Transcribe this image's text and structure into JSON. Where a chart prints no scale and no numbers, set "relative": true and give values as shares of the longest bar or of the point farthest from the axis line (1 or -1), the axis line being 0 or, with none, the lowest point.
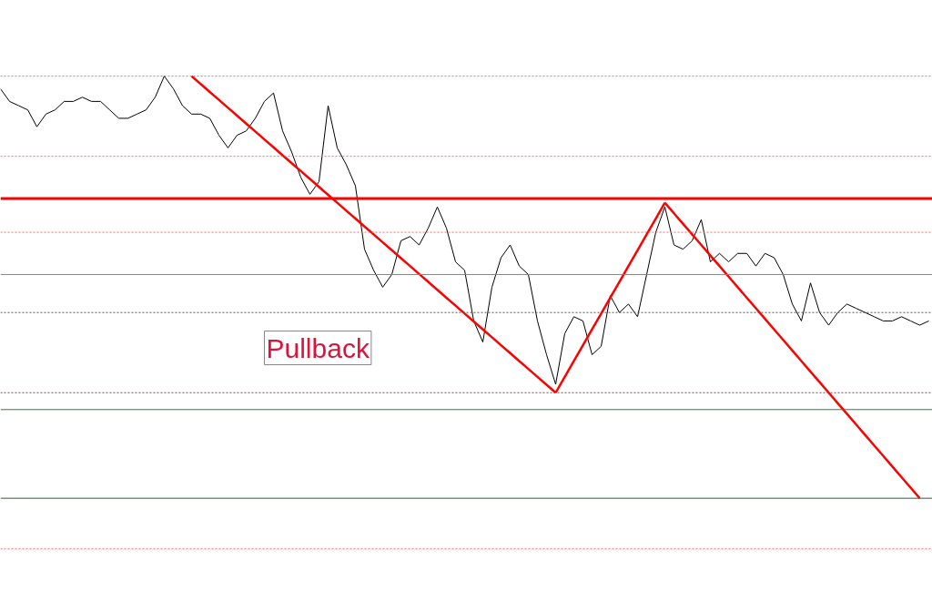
{
  "chart_data": {
    "type": "line",
    "relative": true,
    "grid": false,
    "marker": "none",
    "categories": [
      null,
      null,
      null,
      null,
      null,
      null,
      null,
      null,
      null,
      null,
      null,
      null,
      null,
      null,
      null,
      null,
      null,
      null,
      null,
      null,
      null,
      null,
      null,
      null,
      null,
      null,
      null,
      null,
      null,
      null,
      null,
      null,
      null,
      null,
      null,
      null,
      null,
      null,
      null,
      null,
      null,
      null,
      null,
      null,
      null,
      null,
      null,
      null,
      null,
      null,
      null,
      null,
      null,
      null,
      null,
      null,
      null,
      null,
      null,
      null,
      null,
      null,
      null,
      null,
      null,
      null,
      null,
      null,
      null,
      null,
      null,
      null,
      null,
      null,
      null,
      null,
      null,
      null,
      null,
      null,
      null,
      null,
      null,
      null,
      null,
      null,
      null,
      null,
      null,
      null,
      null,
      null,
      null,
      null,
      null,
      null,
      null,
      null,
      null,
      null,
      null,
      null,
      null
    ],
    "series": [
      {
        "color": "#000000",
        "line_style": "solid",
        "values": [
          0.97,
          0.94,
          0.93,
          0.92,
          0.88,
          0.91,
          0.92,
          0.94,
          0.94,
          0.95,
          0.94,
          0.94,
          0.92,
          0.9,
          0.9,
          0.91,
          0.92,
          0.95,
          1.0,
          0.97,
          0.93,
          0.91,
          0.91,
          0.9,
          0.86,
          0.83,
          0.86,
          0.87,
          0.9,
          0.94,
          0.96,
          0.87,
          0.82,
          0.76,
          0.72,
          0.75,
          0.93,
          0.83,
          0.79,
          0.74,
          0.59,
          0.54,
          0.5,
          0.53,
          0.61,
          0.62,
          0.6,
          0.64,
          0.69,
          0.64,
          0.56,
          0.54,
          0.42,
          0.37,
          0.5,
          0.57,
          0.6,
          0.55,
          0.53,
          0.42,
          0.34,
          0.27,
          0.39,
          0.43,
          0.42,
          0.34,
          0.36,
          0.48,
          0.44,
          0.46,
          0.43,
          0.53,
          0.63,
          0.69,
          0.6,
          0.59,
          0.61,
          0.66,
          0.56,
          0.58,
          0.56,
          0.58,
          0.58,
          0.55,
          0.58,
          0.57,
          0.53,
          0.46,
          0.42,
          0.51,
          0.44,
          0.41,
          0.44,
          0.46,
          0.45,
          0.44,
          0.43,
          0.42,
          0.42,
          0.43,
          0.42,
          0.41,
          0.42
        ]
      },
      {
        "type": "line",
        "color": "#ff0000",
        "line_style": "solid",
        "values": [
          null,
          null,
          null,
          null,
          null,
          null,
          null,
          null,
          null,
          null,
          null,
          null,
          null,
          null,
          null,
          null,
          null,
          null,
          null,
          null,
          null,
          1.0,
          0.98125,
          0.9625,
          0.94375,
          0.925,
          0.90625,
          0.8875,
          0.86875,
          0.85,
          0.83125,
          0.8125,
          0.79375,
          0.775,
          0.75625,
          0.7375,
          0.71875,
          0.7,
          0.68125,
          0.6625,
          0.64375,
          0.625,
          0.60625,
          0.5875,
          0.56875,
          0.55,
          0.53125,
          0.5125,
          0.49375,
          0.475,
          0.45625,
          0.4375,
          0.41875,
          0.4,
          0.38125,
          0.3625,
          0.34375,
          0.325,
          0.30625,
          0.2875,
          0.26875,
          0.25,
          null,
          null,
          null,
          null,
          null,
          null,
          null,
          null,
          null,
          null,
          null,
          null,
          null,
          null,
          null,
          null,
          null,
          null,
          null,
          null,
          null,
          null,
          null,
          null,
          null,
          null,
          null,
          null,
          null,
          null,
          null,
          null,
          null,
          null,
          null,
          null,
          null,
          null,
          null,
          null,
          null
        ]
      },
      {
        "type": "line",
        "color": "#ff0000",
        "line_style": "solid",
        "values": [
          null,
          null,
          null,
          null,
          null,
          null,
          null,
          null,
          null,
          null,
          null,
          null,
          null,
          null,
          null,
          null,
          null,
          null,
          null,
          null,
          null,
          null,
          null,
          null,
          null,
          null,
          null,
          null,
          null,
          null,
          null,
          null,
          null,
          null,
          null,
          null,
          null,
          null,
          null,
          null,
          null,
          null,
          null,
          null,
          null,
          null,
          null,
          null,
          null,
          null,
          null,
          null,
          null,
          null,
          null,
          null,
          null,
          null,
          null,
          null,
          null,
          0.25,
          0.2875,
          0.325,
          0.3625,
          0.4,
          0.4375,
          0.475,
          0.5125,
          0.55,
          0.5875,
          0.625,
          0.6625,
          0.7,
          null,
          null,
          null,
          null,
          null,
          null,
          null,
          null,
          null,
          null,
          null,
          null,
          null,
          null,
          null,
          null,
          null,
          null,
          null,
          null,
          null,
          null,
          null,
          null,
          null,
          null,
          null,
          null,
          null
        ]
      },
      {
        "type": "line",
        "color": "#ff0000",
        "line_style": "solid",
        "values": [
          null,
          null,
          null,
          null,
          null,
          null,
          null,
          null,
          null,
          null,
          null,
          null,
          null,
          null,
          null,
          null,
          null,
          null,
          null,
          null,
          null,
          null,
          null,
          null,
          null,
          null,
          null,
          null,
          null,
          null,
          null,
          null,
          null,
          null,
          null,
          null,
          null,
          null,
          null,
          null,
          null,
          null,
          null,
          null,
          null,
          null,
          null,
          null,
          null,
          null,
          null,
          null,
          null,
          null,
          null,
          null,
          null,
          null,
          null,
          null,
          null,
          null,
          null,
          null,
          null,
          null,
          null,
          null,
          null,
          null,
          null,
          null,
          null,
          0.7,
          0.675,
          0.65,
          0.625,
          0.6,
          0.575,
          0.55,
          0.525,
          0.5,
          0.475,
          0.45,
          0.425,
          0.4,
          0.375,
          0.35,
          0.325,
          0.3,
          0.275,
          0.25,
          0.225,
          0.2,
          0.175,
          0.15,
          0.125,
          0.1,
          0.075,
          0.05,
          0.025,
          0.0,
          null
        ]
      }
    ],
    "ref_lines": [
      {
        "axis": "y",
        "value": 1.0,
        "color": "#ff6666",
        "line_style": "dotted"
      },
      {
        "axis": "y",
        "value": 0.81,
        "color": "#ff6666",
        "line_style": "dotted"
      },
      {
        "axis": "y",
        "value": 0.71,
        "color": "#ff0000",
        "line_style": "solid"
      },
      {
        "axis": "y",
        "value": 0.63,
        "color": "#ff6666",
        "line_style": "dotted"
      },
      {
        "axis": "y",
        "value": 0.53,
        "color": "#5aa05a",
        "line_style": "solid"
      },
      {
        "axis": "y",
        "value": 0.44,
        "color": "#555555",
        "line_style": "dotted"
      },
      {
        "axis": "y",
        "value": 0.25,
        "color": "#884444",
        "line_style": "dotted"
      },
      {
        "axis": "y",
        "value": 0.21,
        "color": "#3a7a3a",
        "line_style": "solid"
      },
      {
        "axis": "y",
        "value": 0.0,
        "color": "#2f5f3f",
        "line_style": "solid"
      },
      {
        "axis": "y",
        "value": -0.12,
        "color": "#ff6666",
        "line_style": "dotted"
      }
    ],
    "annotations": [
      "Pullback"
    ]
  }
}
